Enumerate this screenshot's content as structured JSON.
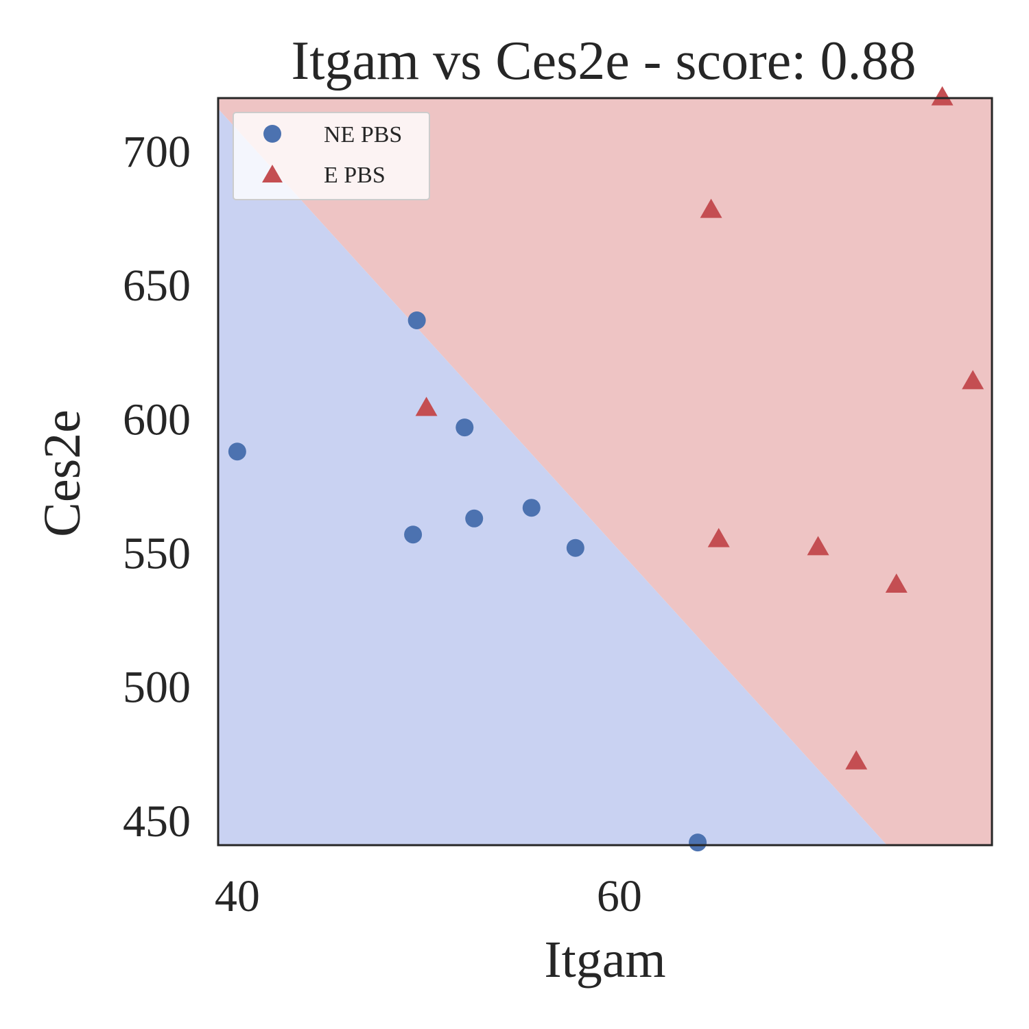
{
  "chart_data": {
    "type": "scatter",
    "title": "Itgam vs Ces2e - score: 0.88",
    "xlabel": "Itgam",
    "ylabel": "Ces2e",
    "xlim": [
      39.0,
      79.5
    ],
    "ylim": [
      441,
      720
    ],
    "x_ticks": [
      40,
      60
    ],
    "y_ticks": [
      450,
      500,
      550,
      600,
      650,
      700
    ],
    "grid": false,
    "legend_position": "top-left",
    "decision_boundary": {
      "description": "linear classifier regions",
      "points": [
        [
          39.0,
          716
        ],
        [
          74.0,
          441
        ]
      ],
      "below_color": "#c9d2f2",
      "above_color": "#eec4c4"
    },
    "series": [
      {
        "name": "NE PBS",
        "marker": "circle",
        "color": "#4c72b0",
        "points": [
          [
            40.0,
            588
          ],
          [
            49.4,
            637
          ],
          [
            49.2,
            557
          ],
          [
            51.9,
            597
          ],
          [
            52.4,
            563
          ],
          [
            55.4,
            567
          ],
          [
            57.7,
            552
          ],
          [
            64.1,
            442
          ]
        ]
      },
      {
        "name": "E PBS",
        "marker": "triangle",
        "color": "#c44e52",
        "points": [
          [
            49.9,
            604
          ],
          [
            64.8,
            678
          ],
          [
            65.2,
            555
          ],
          [
            70.4,
            552
          ],
          [
            72.4,
            472
          ],
          [
            74.5,
            538
          ],
          [
            76.9,
            720
          ],
          [
            78.5,
            614
          ]
        ]
      }
    ]
  }
}
